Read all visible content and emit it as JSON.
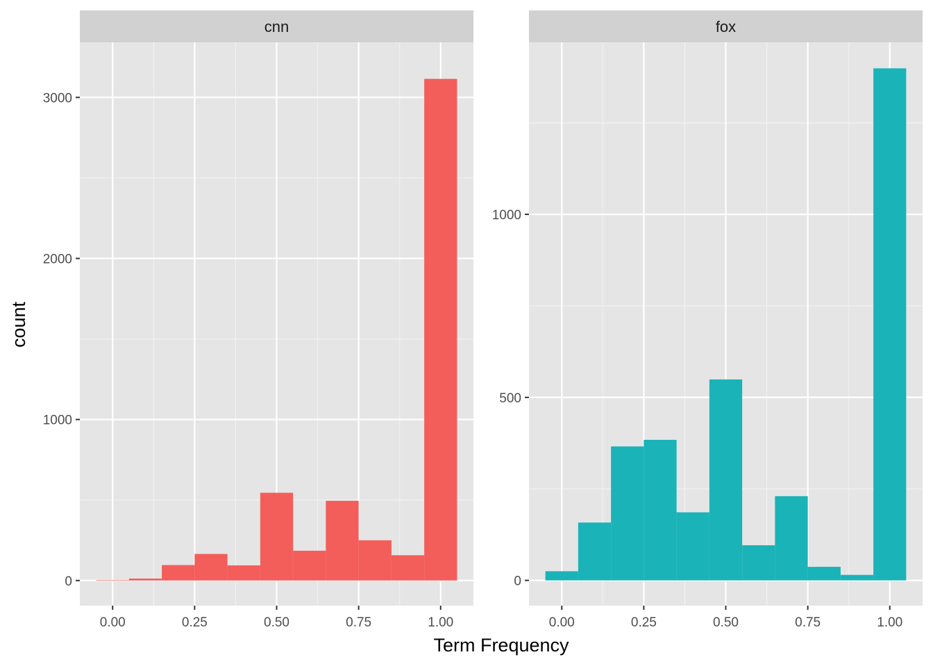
{
  "chart_data": {
    "type": "bar",
    "xlabel": "Term Frequency",
    "ylabel": "count",
    "grid": true,
    "legend": "none",
    "panel_background": "#e5e5e5",
    "strip_background": "#d1d1d1",
    "panels": [
      {
        "label": "cnn",
        "color": "#f35e5a",
        "xlim": [
          -0.1,
          1.1
        ],
        "ylim": [
          -156,
          3342
        ],
        "x_ticks": [
          0.0,
          0.25,
          0.5,
          0.75,
          1.0
        ],
        "x_tick_labels": [
          "0.00",
          "0.25",
          "0.50",
          "0.75",
          "1.00"
        ],
        "y_ticks": [
          0,
          1000,
          2000,
          3000
        ],
        "y_tick_labels": [
          "0",
          "1000",
          "2000",
          "3000"
        ],
        "bins": [
          {
            "x0": -0.05,
            "x1": 0.05,
            "count": 3
          },
          {
            "x0": 0.05,
            "x1": 0.15,
            "count": 12
          },
          {
            "x0": 0.15,
            "x1": 0.25,
            "count": 96
          },
          {
            "x0": 0.25,
            "x1": 0.35,
            "count": 165
          },
          {
            "x0": 0.35,
            "x1": 0.45,
            "count": 94
          },
          {
            "x0": 0.45,
            "x1": 0.55,
            "count": 545
          },
          {
            "x0": 0.55,
            "x1": 0.65,
            "count": 185
          },
          {
            "x0": 0.65,
            "x1": 0.75,
            "count": 495
          },
          {
            "x0": 0.75,
            "x1": 0.85,
            "count": 250
          },
          {
            "x0": 0.85,
            "x1": 0.95,
            "count": 157
          },
          {
            "x0": 0.95,
            "x1": 1.05,
            "count": 3115
          }
        ]
      },
      {
        "label": "fox",
        "color": "#1ab3b8",
        "xlim": [
          -0.1,
          1.1
        ],
        "ylim": [
          -69,
          1470
        ],
        "x_ticks": [
          0.0,
          0.25,
          0.5,
          0.75,
          1.0
        ],
        "x_tick_labels": [
          "0.00",
          "0.25",
          "0.50",
          "0.75",
          "1.00"
        ],
        "y_ticks": [
          0,
          500,
          1000
        ],
        "y_tick_labels": [
          "0",
          "500",
          "1000"
        ],
        "bins": [
          {
            "x0": -0.05,
            "x1": 0.05,
            "count": 25
          },
          {
            "x0": 0.05,
            "x1": 0.15,
            "count": 158
          },
          {
            "x0": 0.15,
            "x1": 0.25,
            "count": 366
          },
          {
            "x0": 0.25,
            "x1": 0.35,
            "count": 384
          },
          {
            "x0": 0.35,
            "x1": 0.45,
            "count": 186
          },
          {
            "x0": 0.45,
            "x1": 0.55,
            "count": 549
          },
          {
            "x0": 0.55,
            "x1": 0.65,
            "count": 96
          },
          {
            "x0": 0.65,
            "x1": 0.75,
            "count": 230
          },
          {
            "x0": 0.75,
            "x1": 0.85,
            "count": 37
          },
          {
            "x0": 0.85,
            "x1": 0.95,
            "count": 15
          },
          {
            "x0": 0.95,
            "x1": 1.05,
            "count": 1399
          }
        ]
      }
    ]
  }
}
